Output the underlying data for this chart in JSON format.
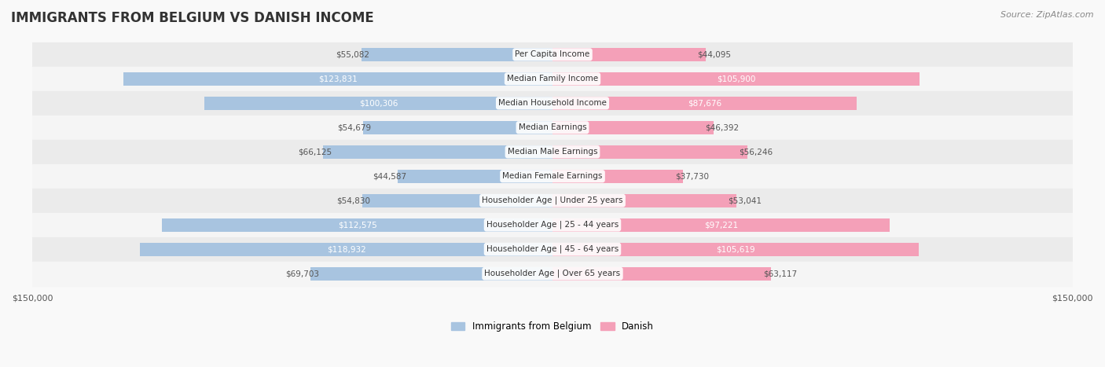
{
  "title": "IMMIGRANTS FROM BELGIUM VS DANISH INCOME",
  "source": "Source: ZipAtlas.com",
  "categories": [
    "Per Capita Income",
    "Median Family Income",
    "Median Household Income",
    "Median Earnings",
    "Median Male Earnings",
    "Median Female Earnings",
    "Householder Age | Under 25 years",
    "Householder Age | 25 - 44 years",
    "Householder Age | 45 - 64 years",
    "Householder Age | Over 65 years"
  ],
  "belgium_values": [
    55082,
    123831,
    100306,
    54679,
    66125,
    44587,
    54830,
    112575,
    118932,
    69703
  ],
  "danish_values": [
    44095,
    105900,
    87676,
    46392,
    56246,
    37730,
    53041,
    97221,
    105619,
    63117
  ],
  "max_val": 150000,
  "belgium_color": "#a8c4e0",
  "danish_color": "#f4a0b8",
  "belgium_color_dark": "#6baed6",
  "danish_color_dark": "#f768a1",
  "bar_height": 0.55,
  "background_color": "#f5f5f5",
  "row_bg_light": "#f0f0f0",
  "row_bg_dark": "#e8e8e8",
  "label_color_dark": "#ffffff",
  "label_color_light": "#555555",
  "title_color": "#333333",
  "legend_belgium_color": "#a8c4e0",
  "legend_danish_color": "#f4a0b8"
}
